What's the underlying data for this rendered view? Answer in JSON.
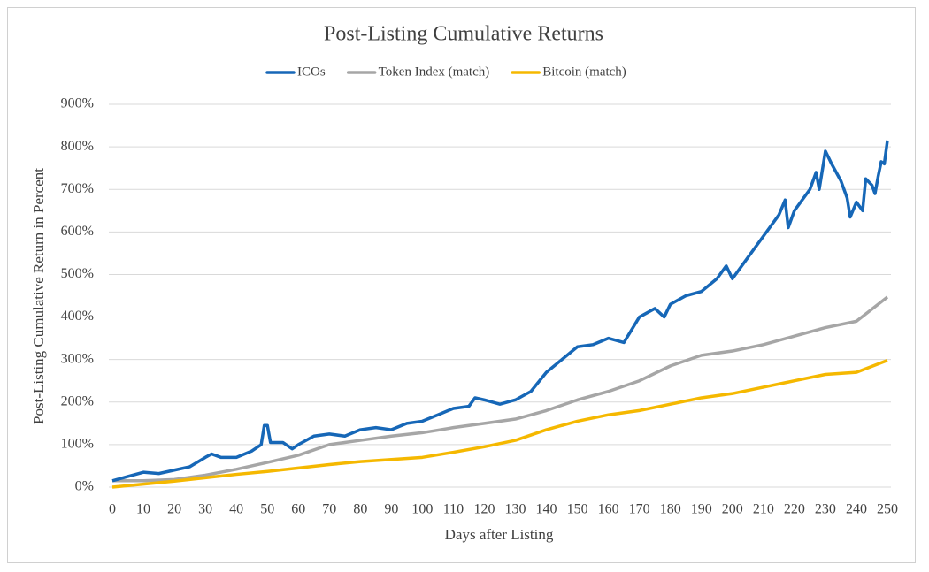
{
  "chart_data": {
    "type": "line",
    "title": "Post-Listing Cumulative Returns",
    "xlabel": "Days after Listing",
    "ylabel": "Post-Listing Cumulative Return in Percent",
    "xlim": [
      0,
      250
    ],
    "xticks": [
      0,
      10,
      20,
      30,
      40,
      50,
      60,
      70,
      80,
      90,
      100,
      110,
      120,
      130,
      140,
      150,
      160,
      170,
      180,
      190,
      200,
      210,
      220,
      230,
      240,
      250
    ],
    "ylim": [
      0,
      900
    ],
    "yticks": [
      {
        "value": 0,
        "label": "0%"
      },
      {
        "value": 100,
        "label": "100%"
      },
      {
        "value": 200,
        "label": "200%"
      },
      {
        "value": 300,
        "label": "300%"
      },
      {
        "value": 400,
        "label": "400%"
      },
      {
        "value": 500,
        "label": "500%"
      },
      {
        "value": 600,
        "label": "600%"
      },
      {
        "value": 700,
        "label": "700%"
      },
      {
        "value": 800,
        "label": "800%"
      },
      {
        "value": 900,
        "label": "900%"
      }
    ],
    "grid": true,
    "legend": "top",
    "series": [
      {
        "name": "ICOs",
        "color": "#1667b7",
        "x": [
          0,
          5,
          10,
          15,
          20,
          25,
          30,
          32,
          35,
          40,
          45,
          48,
          49,
          50,
          51,
          55,
          58,
          60,
          65,
          70,
          75,
          80,
          85,
          90,
          95,
          100,
          105,
          110,
          115,
          117,
          120,
          125,
          130,
          135,
          140,
          145,
          150,
          155,
          160,
          165,
          170,
          175,
          178,
          180,
          185,
          190,
          195,
          198,
          200,
          205,
          210,
          215,
          217,
          218,
          220,
          225,
          227,
          228,
          230,
          232,
          235,
          237,
          238,
          240,
          242,
          243,
          245,
          246,
          247,
          248,
          249,
          250
        ],
        "values": [
          15,
          25,
          35,
          32,
          40,
          48,
          70,
          78,
          70,
          70,
          85,
          100,
          145,
          145,
          105,
          105,
          90,
          100,
          120,
          125,
          120,
          135,
          140,
          135,
          150,
          155,
          170,
          185,
          190,
          210,
          205,
          195,
          205,
          225,
          270,
          300,
          330,
          335,
          350,
          340,
          400,
          420,
          400,
          430,
          450,
          460,
          490,
          520,
          490,
          540,
          590,
          640,
          675,
          610,
          650,
          700,
          740,
          700,
          790,
          760,
          720,
          680,
          635,
          670,
          650,
          725,
          710,
          690,
          730,
          765,
          760,
          815
        ]
      },
      {
        "name": "Token Index (match)",
        "color": "#a6a6a6",
        "x": [
          0,
          10,
          20,
          30,
          40,
          50,
          60,
          70,
          80,
          90,
          100,
          110,
          120,
          130,
          140,
          150,
          160,
          170,
          180,
          190,
          200,
          210,
          220,
          230,
          240,
          250
        ],
        "values": [
          15,
          15,
          18,
          28,
          42,
          58,
          75,
          100,
          110,
          120,
          128,
          140,
          150,
          160,
          180,
          205,
          225,
          250,
          285,
          310,
          320,
          335,
          355,
          375,
          390,
          447
        ]
      },
      {
        "name": "Bitcoin (match)",
        "color": "#f5b800",
        "x": [
          0,
          10,
          20,
          30,
          40,
          50,
          60,
          70,
          80,
          90,
          100,
          110,
          120,
          130,
          140,
          150,
          160,
          170,
          180,
          190,
          200,
          210,
          220,
          230,
          240,
          250
        ],
        "values": [
          0,
          7,
          14,
          22,
          30,
          37,
          45,
          53,
          60,
          65,
          70,
          82,
          95,
          110,
          135,
          155,
          170,
          180,
          195,
          210,
          220,
          235,
          250,
          265,
          270,
          298
        ]
      }
    ]
  }
}
